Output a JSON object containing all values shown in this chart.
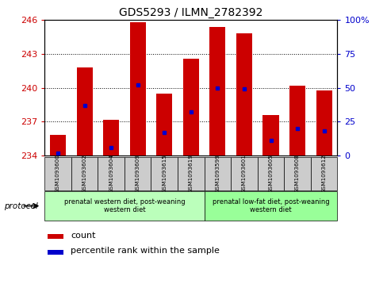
{
  "title": "GDS5293 / ILMN_2782392",
  "samples": [
    "GSM1093600",
    "GSM1093602",
    "GSM1093604",
    "GSM1093609",
    "GSM1093615",
    "GSM1093619",
    "GSM1093599",
    "GSM1093601",
    "GSM1093605",
    "GSM1093608",
    "GSM1093612"
  ],
  "counts": [
    235.8,
    241.8,
    237.2,
    245.8,
    239.5,
    242.6,
    245.4,
    244.8,
    237.6,
    240.2,
    239.8
  ],
  "percentiles": [
    2,
    37,
    6,
    52,
    17,
    32,
    50,
    49,
    11,
    20,
    18
  ],
  "ymin": 234,
  "ymax": 246,
  "yticks": [
    234,
    237,
    240,
    243,
    246
  ],
  "right_yticks": [
    0,
    25,
    50,
    75,
    100
  ],
  "bar_color": "#cc0000",
  "percentile_color": "#0000cc",
  "bar_width": 0.6,
  "group1_label": "prenatal western diet, post-weaning\nwestern diet",
  "group2_label": "prenatal low-fat diet, post-weaning\nwestern diet",
  "group1_count": 6,
  "group2_count": 5,
  "protocol_label": "protocol",
  "legend_count": "count",
  "legend_percentile": "percentile rank within the sample",
  "group1_color": "#bbffbb",
  "group2_color": "#99ff99",
  "xlabels_bg": "#cccccc",
  "bg_color": "#ffffff"
}
